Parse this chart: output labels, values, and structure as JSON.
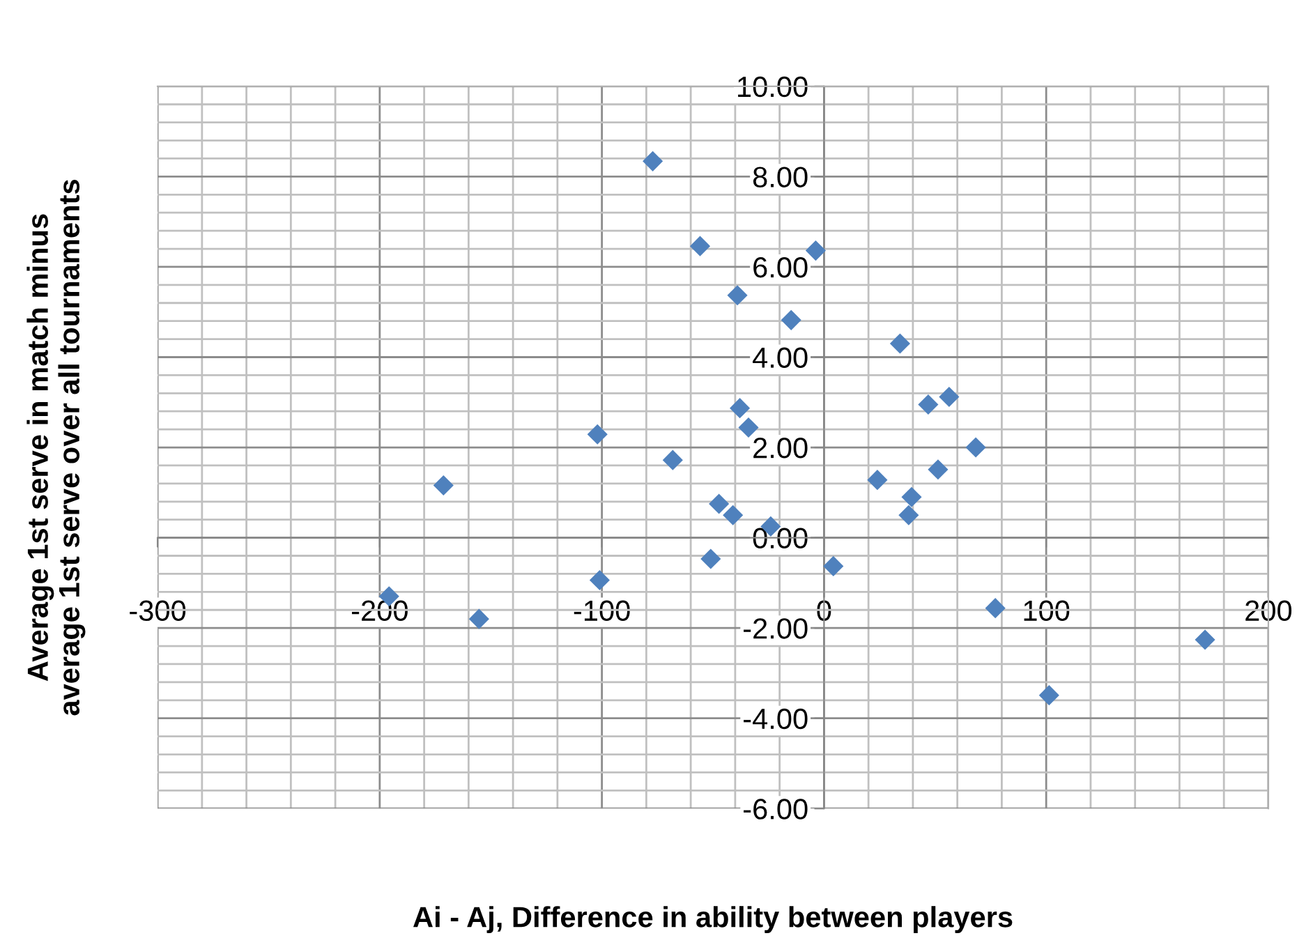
{
  "chart_data": {
    "type": "scatter",
    "xlabel": "Ai - Aj, Difference in ability between players",
    "ylabel": "Average 1st serve in match minus\naverage 1st serve over all tournaments",
    "x": [
      -77.1,
      -55.8,
      -3.75,
      -39,
      -14.8,
      34.2,
      56.3,
      46.9,
      -37.9,
      -34,
      -102,
      68.3,
      -68.1,
      51.3,
      24,
      39.4,
      -47.3,
      38.1,
      -41,
      -24,
      -51,
      4.2,
      -101,
      77.1,
      171.5,
      101.3,
      -171.3,
      -195.8,
      -155.3
    ],
    "series": [
      {
        "color": "#4f81bd",
        "values": [
          8.34,
          6.46,
          6.36,
          5.37,
          4.82,
          4.3,
          3.12,
          2.95,
          2.87,
          2.44,
          2.29,
          2.0,
          1.72,
          1.51,
          1.28,
          0.9,
          0.75,
          0.5,
          0.5,
          0.25,
          -0.47,
          -0.63,
          -0.94,
          -1.56,
          -2.26,
          -3.49,
          1.16,
          -1.3,
          -1.8
        ]
      }
    ],
    "marker": "diamond",
    "xlim": [
      -300,
      200
    ],
    "xticks": [
      -300,
      -200,
      -100,
      0,
      100,
      200
    ],
    "ylim": [
      -6,
      10
    ],
    "yticks": [
      {
        "value": -6,
        "label": "-6.00"
      },
      {
        "value": -4,
        "label": "-4.00"
      },
      {
        "value": -2,
        "label": "-2.00"
      },
      {
        "value": 0,
        "label": "0.00"
      },
      {
        "value": 2,
        "label": "2.00"
      },
      {
        "value": 4,
        "label": "4.00"
      },
      {
        "value": 6,
        "label": "6.00"
      },
      {
        "value": 8,
        "label": "8.00"
      },
      {
        "value": 10,
        "label": "10.00"
      }
    ],
    "grid": true
  }
}
